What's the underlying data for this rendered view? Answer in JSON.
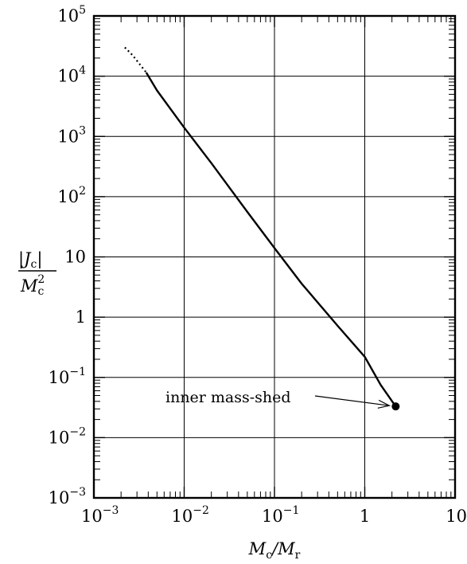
{
  "chart_data": {
    "type": "line",
    "xscale": "log",
    "yscale": "log",
    "xlim": [
      0.001,
      10
    ],
    "ylim": [
      0.001,
      100000
    ],
    "grid": true,
    "x_ticks": [
      {
        "value": 0.001,
        "base": "10",
        "exp": "−3",
        "text": ""
      },
      {
        "value": 0.01,
        "base": "10",
        "exp": "−2",
        "text": ""
      },
      {
        "value": 0.1,
        "base": "10",
        "exp": "−1",
        "text": ""
      },
      {
        "value": 1,
        "base": "",
        "exp": "",
        "text": "1"
      },
      {
        "value": 10,
        "base": "",
        "exp": "",
        "text": "10"
      }
    ],
    "y_ticks": [
      {
        "value": 0.001,
        "base": "10",
        "exp": "−3",
        "text": ""
      },
      {
        "value": 0.01,
        "base": "10",
        "exp": "−2",
        "text": ""
      },
      {
        "value": 0.1,
        "base": "10",
        "exp": "−1",
        "text": ""
      },
      {
        "value": 1,
        "base": "",
        "exp": "",
        "text": "1"
      },
      {
        "value": 10,
        "base": "",
        "exp": "",
        "text": "10"
      },
      {
        "value": 100,
        "base": "10",
        "exp": "2",
        "text": ""
      },
      {
        "value": 1000,
        "base": "10",
        "exp": "3",
        "text": ""
      },
      {
        "value": 10000,
        "base": "10",
        "exp": "4",
        "text": ""
      },
      {
        "value": 100000,
        "base": "10",
        "exp": "5",
        "text": ""
      }
    ],
    "xlabel": {
      "main": "M",
      "sub1": "c",
      "slash": "/M",
      "sub2": "r"
    },
    "ylabel": {
      "num_main": "|J",
      "num_sub": "c",
      "num_end": "|",
      "den_main": "M",
      "den_sub": "c",
      "den_sup": "2"
    },
    "series": [
      {
        "style": "dotted",
        "x": [
          0.0022,
          0.0027,
          0.0033,
          0.0038
        ],
        "y": [
          30000,
          22000,
          15000,
          11500
        ]
      },
      {
        "style": "solid",
        "x": [
          0.0038,
          0.005,
          0.01,
          0.02,
          0.05,
          0.1,
          0.2,
          0.5,
          1.0,
          1.5,
          2.2
        ],
        "y": [
          11500,
          5800,
          1400,
          360,
          56,
          14,
          3.6,
          0.72,
          0.22,
          0.075,
          0.033
        ]
      }
    ],
    "endpoint": {
      "x": 2.2,
      "y": 0.033
    },
    "annotation": {
      "text": "inner mass-shed",
      "target_x": 2.2,
      "target_y": 0.033
    }
  }
}
